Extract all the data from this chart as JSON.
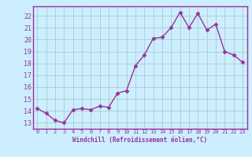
{
  "x": [
    0,
    1,
    2,
    3,
    4,
    5,
    6,
    7,
    8,
    9,
    10,
    11,
    12,
    13,
    14,
    15,
    16,
    17,
    18,
    19,
    20,
    21,
    22,
    23
  ],
  "y": [
    14.2,
    13.8,
    13.2,
    13.0,
    14.1,
    14.2,
    14.1,
    14.4,
    14.3,
    15.5,
    15.7,
    17.8,
    18.7,
    20.1,
    20.2,
    21.0,
    22.3,
    21.0,
    22.2,
    20.8,
    21.3,
    19.0,
    18.7,
    18.1
  ],
  "line_color": "#993399",
  "marker": "D",
  "marker_size": 2.5,
  "bg_color": "#cceeff",
  "grid_color": "#aacccc",
  "xlabel": "Windchill (Refroidissement éolien,°C)",
  "xlim": [
    -0.5,
    23.5
  ],
  "ylim": [
    12.5,
    22.8
  ],
  "yticks": [
    13,
    14,
    15,
    16,
    17,
    18,
    19,
    20,
    21,
    22
  ],
  "xticks": [
    0,
    1,
    2,
    3,
    4,
    5,
    6,
    7,
    8,
    9,
    10,
    11,
    12,
    13,
    14,
    15,
    16,
    17,
    18,
    19,
    20,
    21,
    22,
    23
  ],
  "label_color": "#993399",
  "tick_color": "#993399",
  "font_family": "monospace",
  "spine_color": "#993399"
}
